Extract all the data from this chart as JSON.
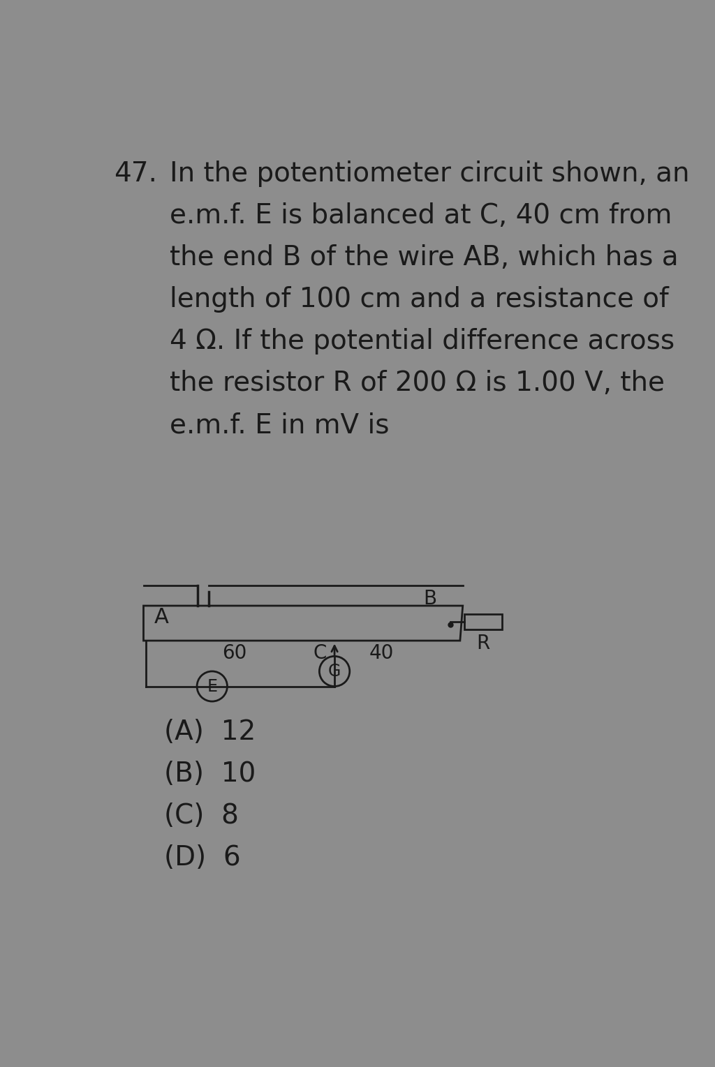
{
  "background_color": "#8d8d8d",
  "question_number": "47.",
  "question_text_lines": [
    "In the potentiometer circuit shown, an",
    "e.m.f. E is balanced at C, 40 cm from",
    "the end B of the wire AB, which has a",
    "length of 100 cm and a resistance of",
    "4 Ω. If the potential difference across",
    "the resistor R of 200 Ω is 1.00 V, the",
    "e.m.f. E in mV is"
  ],
  "options": [
    "(A)  12",
    "(B)  10",
    "(C)  8",
    "(D)  6"
  ],
  "font_size_question": 28,
  "font_size_options": 28,
  "text_color": "#1a1a1a",
  "wire_color": "#1a1a1a",
  "label_A": "A",
  "label_B": "B",
  "label_C": "C",
  "label_60": "60",
  "label_40": "40",
  "label_R": "R",
  "label_E": "E",
  "label_G": "G"
}
